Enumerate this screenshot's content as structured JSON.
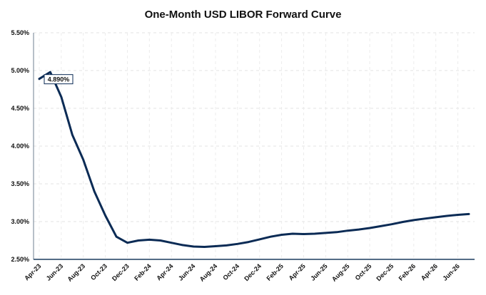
{
  "chart_data": {
    "type": "line",
    "title": "One-Month USD LIBOR Forward Curve",
    "xlabel": "",
    "ylabel": "",
    "ylim": [
      2.5,
      5.5
    ],
    "y_ticks": [
      "2.50%",
      "3.00%",
      "3.50%",
      "4.00%",
      "4.50%",
      "5.00%",
      "5.50%"
    ],
    "x_ticks": [
      "Apr-23",
      "Jun-23",
      "Aug-23",
      "Oct-23",
      "Dec-23",
      "Feb-24",
      "Apr-24",
      "Jun-24",
      "Aug-24",
      "Oct-24",
      "Dec-24",
      "Feb-25",
      "Apr-25",
      "Jun-25",
      "Aug-25",
      "Oct-25",
      "Dec-25",
      "Feb-26",
      "Apr-26",
      "Jun-26"
    ],
    "grid": true,
    "annotation": "4.890%",
    "color": "#0b2b55",
    "series": [
      {
        "x": [
          "Apr-23",
          "May-23",
          "Jun-23",
          "Jul-23",
          "Aug-23",
          "Sep-23",
          "Oct-23",
          "Nov-23",
          "Dec-23",
          "Jan-24",
          "Feb-24",
          "Mar-24",
          "Apr-24",
          "May-24",
          "Jun-24",
          "Jul-24",
          "Aug-24",
          "Sep-24",
          "Oct-24",
          "Nov-24",
          "Dec-24",
          "Jan-25",
          "Feb-25",
          "Mar-25",
          "Apr-25",
          "May-25",
          "Jun-25",
          "Jul-25",
          "Aug-25",
          "Sep-25",
          "Oct-25",
          "Nov-25",
          "Dec-25",
          "Jan-26",
          "Feb-26",
          "Mar-26",
          "Apr-26",
          "May-26",
          "Jun-26",
          "Jul-26"
        ],
        "values": [
          4.89,
          4.98,
          4.65,
          4.15,
          3.82,
          3.4,
          3.08,
          2.8,
          2.72,
          2.75,
          2.76,
          2.75,
          2.72,
          2.69,
          2.67,
          2.665,
          2.675,
          2.685,
          2.705,
          2.73,
          2.765,
          2.8,
          2.825,
          2.84,
          2.835,
          2.84,
          2.85,
          2.86,
          2.88,
          2.895,
          2.915,
          2.94,
          2.965,
          2.995,
          3.02,
          3.04,
          3.058,
          3.075,
          3.09,
          3.1
        ]
      }
    ]
  }
}
